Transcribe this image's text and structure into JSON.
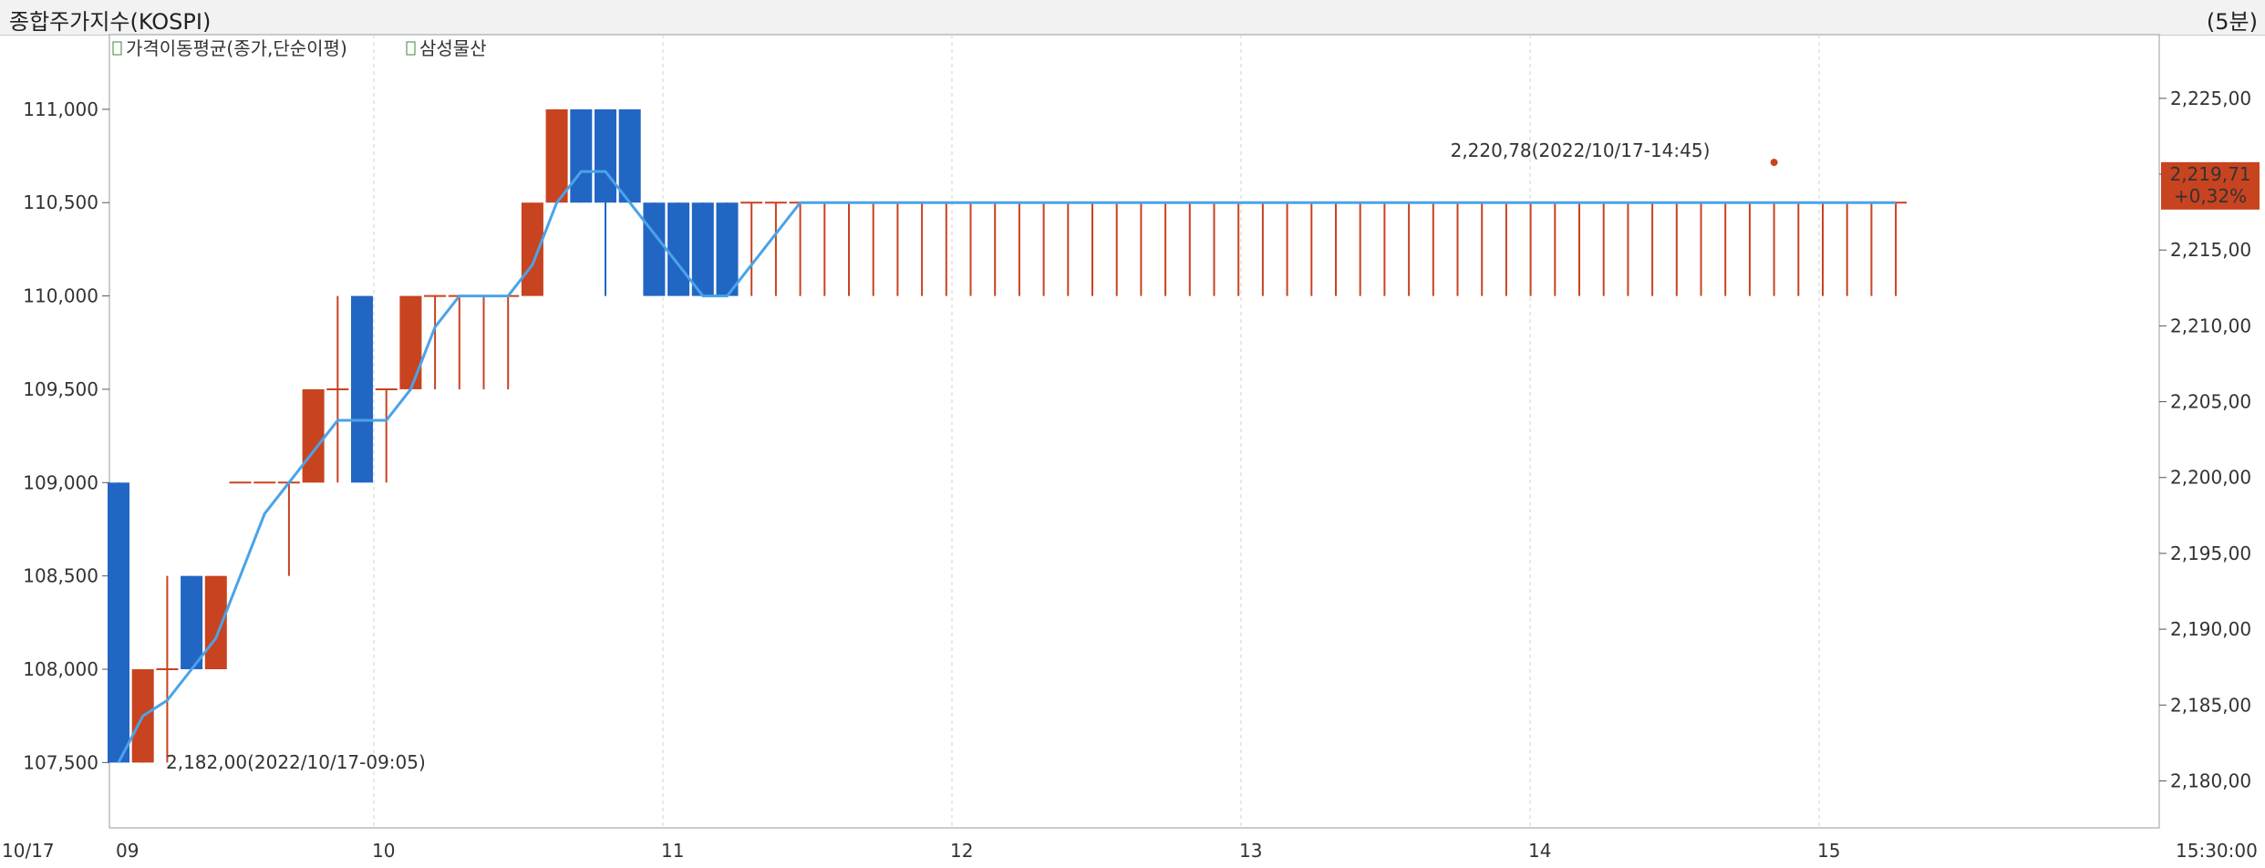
{
  "header": {
    "title": "종합주가지수(KOSPI)",
    "period": "(5분)"
  },
  "legend": [
    {
      "label": "가격이동평균(종가,단순이평)",
      "color": "#333333"
    },
    {
      "label": "삼성물산",
      "color": "#cc3300"
    }
  ],
  "colors": {
    "up": "#c8431f",
    "down": "#2266c4",
    "line": "#4aa3e8",
    "grid": "#d0d0d0"
  },
  "chart_data": {
    "type": "candlestick+line",
    "x_labels": [
      "10/17",
      "09",
      "10",
      "11",
      "12",
      "13",
      "14",
      "15",
      "15:30:00"
    ],
    "left_axis": {
      "ticks": [
        "111,000",
        "110,500",
        "110,000",
        "109,500",
        "109,000",
        "108,500",
        "108,000",
        "107,500"
      ],
      "range": [
        107150,
        111400
      ]
    },
    "right_axis": {
      "ticks": [
        "2,225,00",
        "2,220,00",
        "2,215,00",
        "2,210,00",
        "2,205,00",
        "2,200,00",
        "2,195,00",
        "2,190,00",
        "2,185,00",
        "2,180,00"
      ],
      "range": [
        2176.9,
        2229.2
      ]
    },
    "candles": [
      [
        109000,
        109000,
        107500,
        107500
      ],
      [
        107500,
        108000,
        107500,
        108000
      ],
      [
        108000,
        108500,
        107500,
        108000
      ],
      [
        108500,
        108500,
        108000,
        108000
      ],
      [
        108000,
        108500,
        108000,
        108500
      ],
      [
        109000,
        109000,
        109000,
        109000
      ],
      [
        109000,
        109000,
        109000,
        109000
      ],
      [
        109000,
        109000,
        108500,
        109000
      ],
      [
        109000,
        109500,
        109000,
        109500
      ],
      [
        109500,
        110000,
        109000,
        109500
      ],
      [
        110000,
        110000,
        109000,
        109000
      ],
      [
        109500,
        109500,
        109000,
        109500
      ],
      [
        109500,
        110000,
        109500,
        110000
      ],
      [
        110000,
        110000,
        109500,
        110000
      ],
      [
        110000,
        110000,
        109500,
        110000
      ],
      [
        110000,
        110000,
        109500,
        110000
      ],
      [
        110000,
        110000,
        109500,
        110000
      ],
      [
        110000,
        110500,
        110000,
        110500
      ],
      [
        110500,
        111000,
        110500,
        111000
      ],
      [
        111000,
        111000,
        110500,
        110500
      ],
      [
        111000,
        111000,
        110000,
        110500
      ],
      [
        111000,
        111000,
        110500,
        110500
      ],
      [
        110500,
        110500,
        110000,
        110000
      ],
      [
        110500,
        110500,
        110000,
        110000
      ],
      [
        110500,
        110500,
        110000,
        110000
      ],
      [
        110500,
        110500,
        110000,
        110000
      ],
      [
        110500,
        110500,
        110000,
        110500
      ],
      [
        110500,
        110500,
        110000,
        110500
      ],
      [
        110500,
        110500,
        110000,
        110500
      ],
      [
        110500,
        110500,
        110000,
        110500
      ],
      [
        110500,
        110500,
        110000,
        110500
      ],
      [
        110500,
        110500,
        110000,
        110500
      ],
      [
        110500,
        110500,
        110000,
        110500
      ],
      [
        110500,
        110500,
        110000,
        110500
      ],
      [
        110500,
        110500,
        110000,
        110500
      ],
      [
        110500,
        110500,
        110000,
        110500
      ],
      [
        110500,
        110500,
        110000,
        110500
      ],
      [
        110500,
        110500,
        110000,
        110500
      ],
      [
        110500,
        110500,
        110000,
        110500
      ],
      [
        110500,
        110500,
        110000,
        110500
      ],
      [
        110500,
        110500,
        110000,
        110500
      ],
      [
        110500,
        110500,
        110000,
        110500
      ],
      [
        110500,
        110500,
        110000,
        110500
      ],
      [
        110500,
        110500,
        110000,
        110500
      ],
      [
        110500,
        110500,
        110000,
        110500
      ],
      [
        110500,
        110500,
        110000,
        110500
      ],
      [
        110500,
        110500,
        110000,
        110500
      ],
      [
        110500,
        110500,
        110000,
        110500
      ],
      [
        110500,
        110500,
        110000,
        110500
      ],
      [
        110500,
        110500,
        110000,
        110500
      ],
      [
        110500,
        110500,
        110000,
        110500
      ],
      [
        110500,
        110500,
        110000,
        110500
      ],
      [
        110500,
        110500,
        110000,
        110500
      ],
      [
        110500,
        110500,
        110000,
        110500
      ],
      [
        110500,
        110500,
        110000,
        110500
      ],
      [
        110500,
        110500,
        110000,
        110500
      ],
      [
        110500,
        110500,
        110000,
        110500
      ],
      [
        110500,
        110500,
        110000,
        110500
      ],
      [
        110500,
        110500,
        110000,
        110500
      ],
      [
        110500,
        110500,
        110000,
        110500
      ],
      [
        110500,
        110500,
        110000,
        110500
      ],
      [
        110500,
        110500,
        110000,
        110500
      ],
      [
        110500,
        110500,
        110000,
        110500
      ],
      [
        110500,
        110500,
        110000,
        110500
      ],
      [
        110500,
        110500,
        110000,
        110500
      ],
      [
        110500,
        110500,
        110000,
        110500
      ],
      [
        110500,
        110500,
        110000,
        110500
      ],
      [
        110500,
        110500,
        110000,
        110500
      ],
      [
        110500,
        110500,
        110000,
        110500
      ],
      [
        110500,
        110500,
        110000,
        110500
      ],
      [
        110500,
        110500,
        110000,
        110500
      ],
      [
        110500,
        110500,
        110000,
        110500
      ],
      [
        110500,
        110500,
        110000,
        110500
      ],
      [
        110500,
        110500,
        110000,
        110500
      ]
    ],
    "annotations": [
      {
        "text": "2,182,00(2022/10/17-09:05)",
        "x": 0,
        "value": 2182.0,
        "color": "#2266c4"
      },
      {
        "text": "2,220,78(2022/10/17-14:45)",
        "x": 68,
        "value": 2220.78,
        "color": "#c8431f"
      }
    ],
    "last_value": {
      "value": "2,219,71",
      "change": "+0,32%"
    }
  }
}
